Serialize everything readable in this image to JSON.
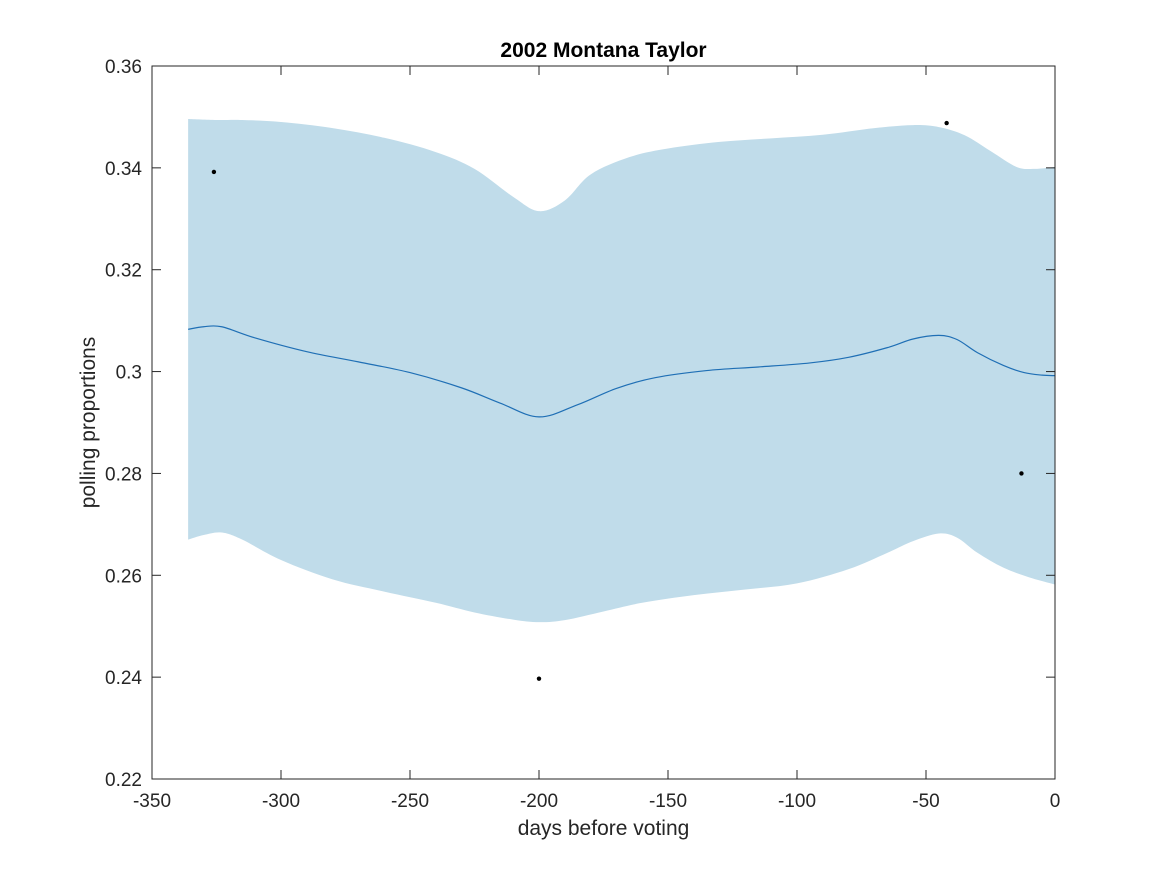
{
  "chart_data": {
    "type": "line",
    "title": "2002 Montana Taylor",
    "xlabel": "days before voting",
    "ylabel": "polling proportions",
    "xlim": [
      -350,
      0
    ],
    "ylim": [
      0.22,
      0.36
    ],
    "xticks": [
      -350,
      -300,
      -250,
      -200,
      -150,
      -100,
      -50,
      0
    ],
    "yticks": [
      0.22,
      0.24,
      0.26,
      0.28,
      0.3,
      0.32,
      0.34,
      0.36
    ],
    "xtick_labels": [
      "-350",
      "-300",
      "-250",
      "-200",
      "-150",
      "-100",
      "-50",
      "0"
    ],
    "ytick_labels": [
      "0.22",
      "0.24",
      "0.26",
      "0.28",
      "0.3",
      "0.32",
      "0.34",
      "0.36"
    ],
    "grid": false,
    "colors": {
      "band": "#c0dcea",
      "mean_line": "#1f6fb5",
      "points": "#000000",
      "axes": "#262626"
    },
    "series": [
      {
        "kind": "mean",
        "x": [
          -336,
          -330,
          -323,
          -310,
          -290,
          -270,
          -250,
          -230,
          -215,
          -200,
          -185,
          -170,
          -155,
          -135,
          -115,
          -95,
          -80,
          -65,
          -55,
          -45,
          -38,
          -30,
          -20,
          -12,
          -5,
          0
        ],
        "y": [
          0.3083,
          0.3088,
          0.3088,
          0.3066,
          0.3039,
          0.3019,
          0.2998,
          0.2968,
          0.2938,
          0.2911,
          0.2935,
          0.2967,
          0.2988,
          0.3002,
          0.3009,
          0.3017,
          0.3028,
          0.3047,
          0.3064,
          0.3071,
          0.3063,
          0.3037,
          0.3012,
          0.2998,
          0.2993,
          0.2992
        ]
      },
      {
        "kind": "upper",
        "x": [
          -336,
          -325,
          -315,
          -300,
          -280,
          -260,
          -240,
          -225,
          -210,
          -200,
          -190,
          -180,
          -165,
          -150,
          -130,
          -110,
          -90,
          -70,
          -55,
          -45,
          -35,
          -25,
          -15,
          -8,
          0
        ],
        "y": [
          0.3496,
          0.3494,
          0.3494,
          0.349,
          0.3478,
          0.3459,
          0.3431,
          0.3398,
          0.3343,
          0.3315,
          0.3336,
          0.3387,
          0.3421,
          0.3438,
          0.3451,
          0.3458,
          0.3465,
          0.3478,
          0.3484,
          0.348,
          0.3464,
          0.3433,
          0.3402,
          0.3398,
          0.3402
        ]
      },
      {
        "kind": "lower",
        "x": [
          -336,
          -330,
          -323,
          -315,
          -300,
          -280,
          -260,
          -240,
          -225,
          -210,
          -200,
          -190,
          -175,
          -160,
          -140,
          -120,
          -100,
          -80,
          -65,
          -55,
          -45,
          -38,
          -30,
          -20,
          -10,
          0
        ],
        "y": [
          0.267,
          0.2679,
          0.2684,
          0.267,
          0.263,
          0.2592,
          0.2568,
          0.2546,
          0.2527,
          0.2513,
          0.2508,
          0.2512,
          0.2529,
          0.2546,
          0.2561,
          0.2572,
          0.2584,
          0.2612,
          0.2644,
          0.2667,
          0.2682,
          0.2674,
          0.2644,
          0.2615,
          0.2596,
          0.2582
        ]
      },
      {
        "kind": "polls",
        "x": [
          -326,
          -200,
          -42,
          -13
        ],
        "y": [
          0.3392,
          0.2397,
          0.3488,
          0.28
        ]
      }
    ]
  }
}
